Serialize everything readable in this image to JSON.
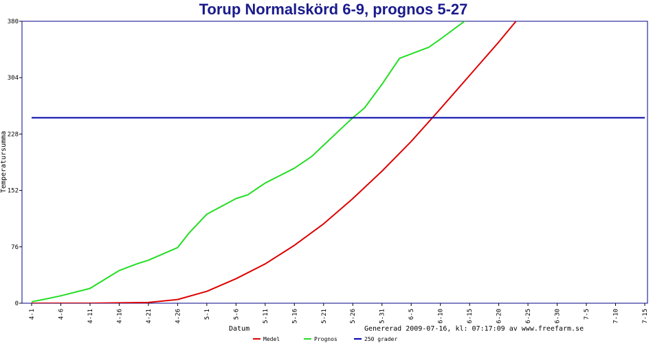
{
  "chart_data": {
    "type": "line",
    "title": "Torup Normalskörd 6-9, prognos 5-27",
    "xlabel": "Datum",
    "ylabel": "Temperatursumma",
    "footer": "Genererad 2009-07-16, kl: 07:17:09 av www.freefarm.se",
    "ylim": [
      0,
      380
    ],
    "yticks": [
      0,
      76,
      152,
      228,
      304,
      380
    ],
    "xdomain": [
      "4-1",
      "7-15"
    ],
    "xticks": [
      "4-1",
      "4-6",
      "4-11",
      "4-16",
      "4-21",
      "4-26",
      "5-1",
      "5-6",
      "5-11",
      "5-16",
      "5-21",
      "5-26",
      "5-31",
      "6-5",
      "6-10",
      "6-15",
      "6-20",
      "6-25",
      "6-30",
      "7-5",
      "7-10",
      "7-15"
    ],
    "grid": false,
    "legend_position": "bottom",
    "series": [
      {
        "name": "Medel",
        "color": "#dd0000",
        "x": [
          "4-1",
          "4-11",
          "4-21",
          "4-26",
          "5-1",
          "5-6",
          "5-11",
          "5-16",
          "5-21",
          "5-26",
          "5-31",
          "6-5",
          "6-10",
          "6-15",
          "6-20",
          "6-24"
        ],
        "y": [
          0,
          0,
          1,
          5,
          16,
          33,
          53,
          78,
          107,
          141,
          178,
          218,
          262,
          307,
          352,
          390
        ]
      },
      {
        "name": "Prognos",
        "color": "#22dd22",
        "x": [
          "4-1",
          "4-3",
          "4-6",
          "4-11",
          "4-16",
          "4-19",
          "4-21",
          "4-26",
          "4-28",
          "5-1",
          "5-6",
          "5-8",
          "5-11",
          "5-16",
          "5-19",
          "5-21",
          "5-26",
          "5-28",
          "5-31",
          "6-3",
          "6-5",
          "6-8",
          "6-10",
          "6-15",
          "6-17"
        ],
        "y": [
          2,
          5,
          10,
          20,
          44,
          53,
          58,
          75,
          95,
          120,
          141,
          146,
          162,
          182,
          198,
          213,
          250,
          263,
          295,
          330,
          336,
          345,
          356,
          385,
          410
        ]
      },
      {
        "name": "250 grader",
        "color": "#0000aa",
        "x": [
          "4-1",
          "7-15"
        ],
        "y": [
          250,
          250
        ]
      }
    ]
  }
}
